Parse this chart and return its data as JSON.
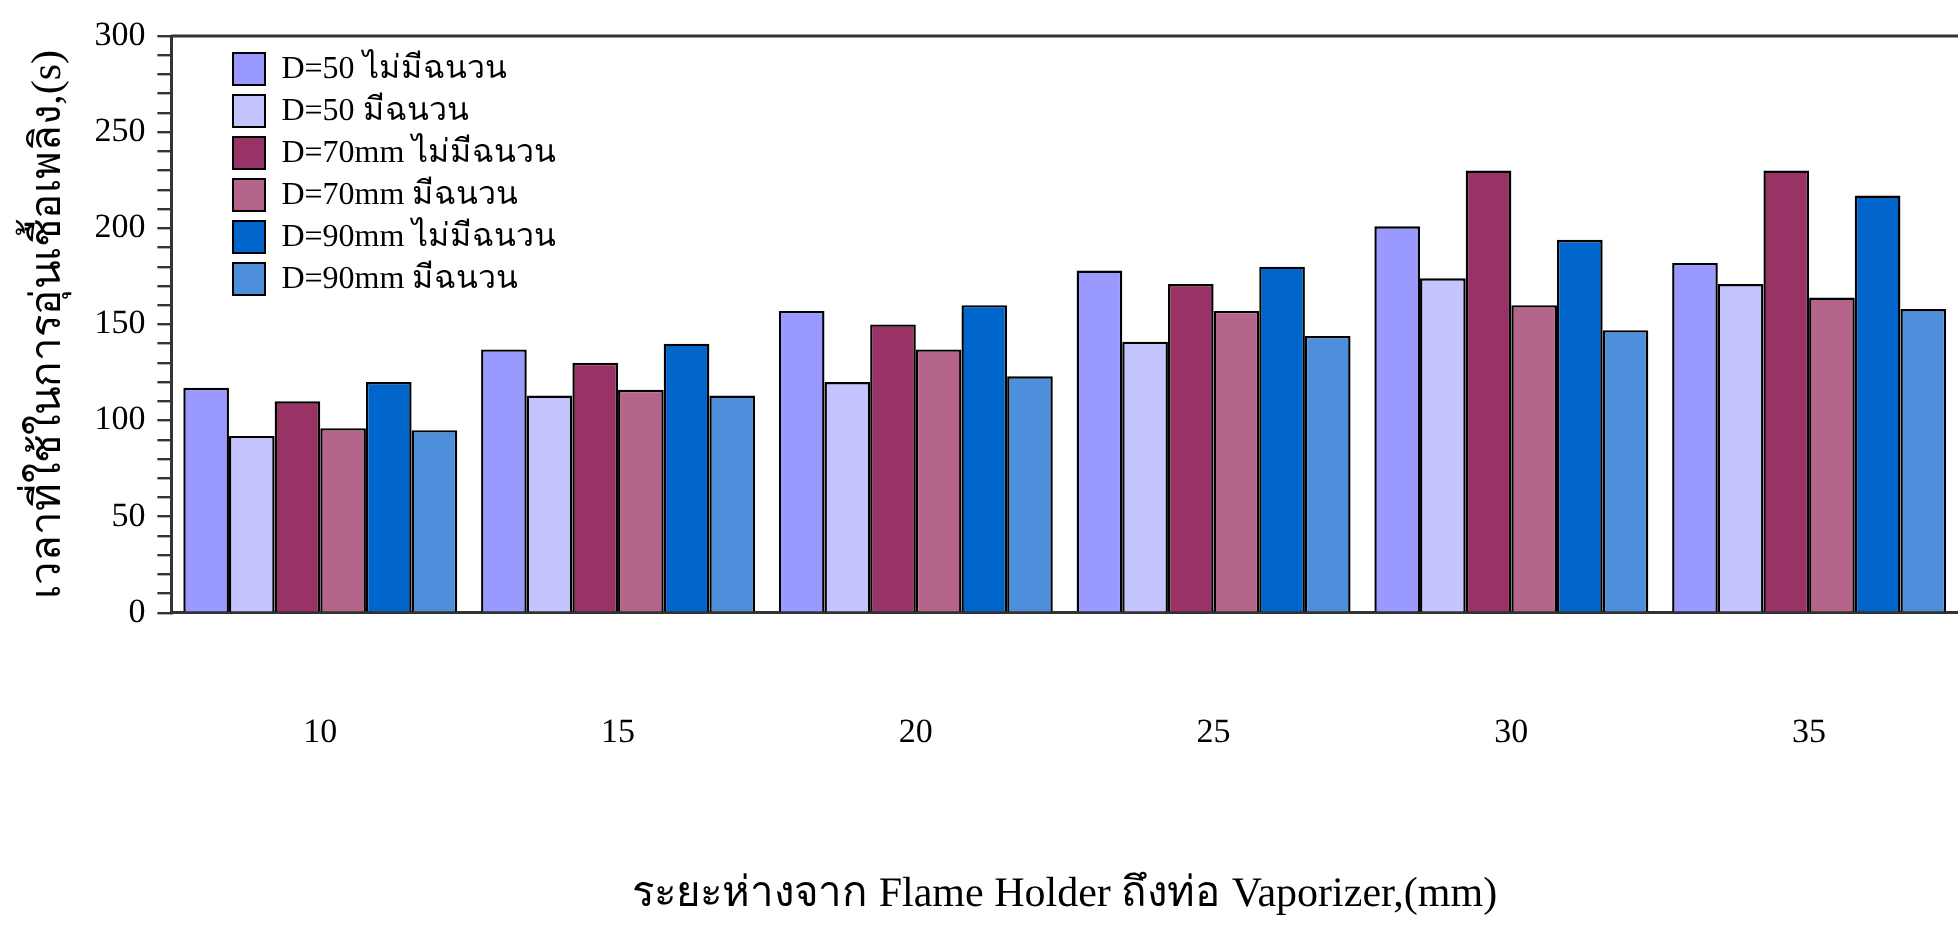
{
  "chart_data": {
    "type": "bar",
    "xlabel": "ระยะห่างจาก Flame Holder ถึงท่อ Vaporizer,(mm)",
    "ylabel": "เวลาที่ใช้ในการอุ่นเชื้อเพลิง,(s)",
    "categories": [
      "10",
      "15",
      "20",
      "25",
      "30",
      "35"
    ],
    "series": [
      {
        "name": "D=50 ไม่มีฉนวน",
        "color": "#9999ff",
        "values": [
          117,
          137,
          157,
          178,
          201,
          182
        ]
      },
      {
        "name": "D=50 มีฉนวน",
        "color": "#c4c4ff",
        "values": [
          92,
          113,
          120,
          141,
          174,
          171
        ]
      },
      {
        "name": "D=70mm ไม่มีฉนวน",
        "color": "#993366",
        "values": [
          110,
          130,
          150,
          171,
          230,
          230
        ]
      },
      {
        "name": "D=70mm มีฉนวน",
        "color": "#b5648a",
        "values": [
          96,
          116,
          137,
          157,
          160,
          164
        ]
      },
      {
        "name": "D=90mm ไม่มีฉนวน",
        "color": "#0066cc",
        "values": [
          120,
          140,
          160,
          180,
          194,
          217
        ]
      },
      {
        "name": "D=90mm มีฉนวน",
        "color": "#4d8fdb",
        "values": [
          95,
          113,
          123,
          144,
          147,
          158
        ]
      }
    ],
    "ylim": [
      0,
      300
    ],
    "yticks": [
      0,
      {
        "value": 10,
        "label": null
      },
      {
        "value": 20,
        "label": null
      },
      {
        "value": 30,
        "label": null
      },
      {
        "value": 40,
        "label": null
      },
      50,
      {
        "value": 60,
        "label": null
      },
      {
        "value": 70,
        "label": null
      },
      {
        "value": 80,
        "label": null
      },
      {
        "value": 90,
        "label": null
      },
      100,
      {
        "value": 110,
        "label": null
      },
      {
        "value": 120,
        "label": null
      },
      {
        "value": 130,
        "label": null
      },
      {
        "value": 140,
        "label": null
      },
      150,
      {
        "value": 160,
        "label": null
      },
      {
        "value": 170,
        "label": null
      },
      {
        "value": 180,
        "label": null
      },
      {
        "value": 190,
        "label": null
      },
      200,
      {
        "value": 210,
        "label": null
      },
      {
        "value": 220,
        "label": null
      },
      {
        "value": 230,
        "label": null
      },
      {
        "value": 240,
        "label": null
      },
      250,
      {
        "value": 260,
        "label": null
      },
      {
        "value": 270,
        "label": null
      },
      {
        "value": 280,
        "label": null
      },
      {
        "value": 290,
        "label": null
      },
      300
    ],
    "grid": false,
    "legend": "top left"
  }
}
